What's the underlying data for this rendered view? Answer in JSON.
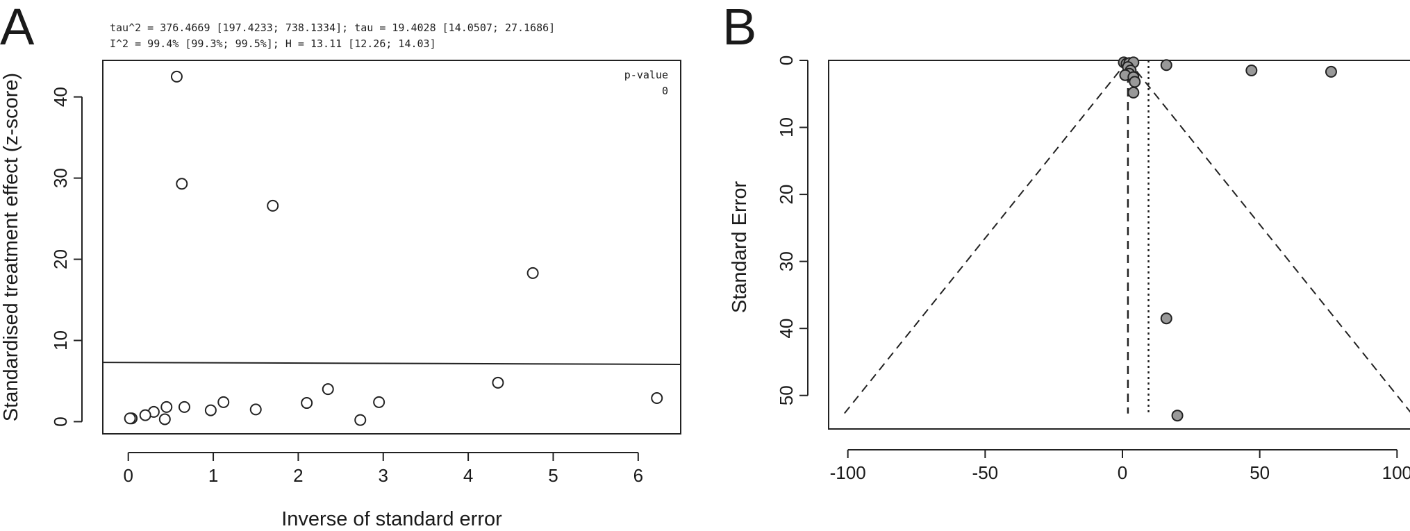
{
  "chart_data": [
    {
      "type": "scatter",
      "panel_label": "A",
      "stats_lines": [
        "tau^2 = 376.4669 [197.4233; 738.1334]; tau = 19.4028 [14.0507; 27.1686]",
        "I^2 = 99.4% [99.3%; 99.5%]; H = 13.11 [12.26; 14.03]"
      ],
      "xlabel": "Inverse of standard error",
      "ylabel": "Standardised treatment effect (z-score)",
      "xlim": [
        -0.3,
        6.5
      ],
      "ylim": [
        -1.5,
        44.5
      ],
      "x_ticks": [
        "0",
        "1",
        "2",
        "3",
        "4",
        "5",
        "6"
      ],
      "y_ticks": [
        "0",
        "10",
        "20",
        "30",
        "40"
      ],
      "points": [
        {
          "x": 0.57,
          "y": 42.5
        },
        {
          "x": 0.63,
          "y": 29.3
        },
        {
          "x": 1.7,
          "y": 26.6
        },
        {
          "x": 4.76,
          "y": 18.3
        },
        {
          "x": 4.35,
          "y": 4.8
        },
        {
          "x": 2.35,
          "y": 4.0
        },
        {
          "x": 6.22,
          "y": 2.9
        },
        {
          "x": 1.12,
          "y": 2.4
        },
        {
          "x": 2.95,
          "y": 2.4
        },
        {
          "x": 2.1,
          "y": 2.3
        },
        {
          "x": 0.45,
          "y": 1.8
        },
        {
          "x": 0.66,
          "y": 1.8
        },
        {
          "x": 1.5,
          "y": 1.5
        },
        {
          "x": 0.97,
          "y": 1.4
        },
        {
          "x": 0.3,
          "y": 1.2
        },
        {
          "x": 0.2,
          "y": 0.8
        },
        {
          "x": 0.04,
          "y": 0.4
        },
        {
          "x": 0.02,
          "y": 0.4
        },
        {
          "x": 0.43,
          "y": 0.3
        },
        {
          "x": 2.73,
          "y": 0.2
        }
      ],
      "regression_line": {
        "x": [
          -0.3,
          6.5
        ],
        "y": [
          7.3,
          7.05
        ]
      },
      "annotation": {
        "label": "p-value",
        "value": "0"
      }
    },
    {
      "type": "scatter",
      "panel_label": "B",
      "xlabel": "",
      "ylabel": "Standard Error",
      "xlim": [
        -107,
        107
      ],
      "ylim": [
        0,
        55
      ],
      "y_reversed": true,
      "x_ticks": [
        "-100",
        "-50",
        "0",
        "50",
        "100"
      ],
      "y_ticks": [
        "0",
        "10",
        "20",
        "30",
        "40",
        "50"
      ],
      "points": [
        {
          "x": 0.5,
          "y": 0.3
        },
        {
          "x": 1.5,
          "y": 0.5
        },
        {
          "x": 2.5,
          "y": 0.4
        },
        {
          "x": 4,
          "y": 0.3
        },
        {
          "x": 2,
          "y": 1.0
        },
        {
          "x": 3,
          "y": 1.5
        },
        {
          "x": 2.5,
          "y": 2.0
        },
        {
          "x": 1,
          "y": 2.2
        },
        {
          "x": 4,
          "y": 2.5
        },
        {
          "x": 4.5,
          "y": 3.2
        },
        {
          "x": 4,
          "y": 4.8
        },
        {
          "x": 16,
          "y": 0.7
        },
        {
          "x": 47,
          "y": 1.5
        },
        {
          "x": 76,
          "y": 1.7
        },
        {
          "x": 16,
          "y": 38.5
        },
        {
          "x": 20,
          "y": 53
        }
      ],
      "fixed_effect_estimate": 2,
      "random_effect_estimate": 9.5,
      "funnel_se_max": 52.7,
      "marker_color": "#999999"
    }
  ]
}
